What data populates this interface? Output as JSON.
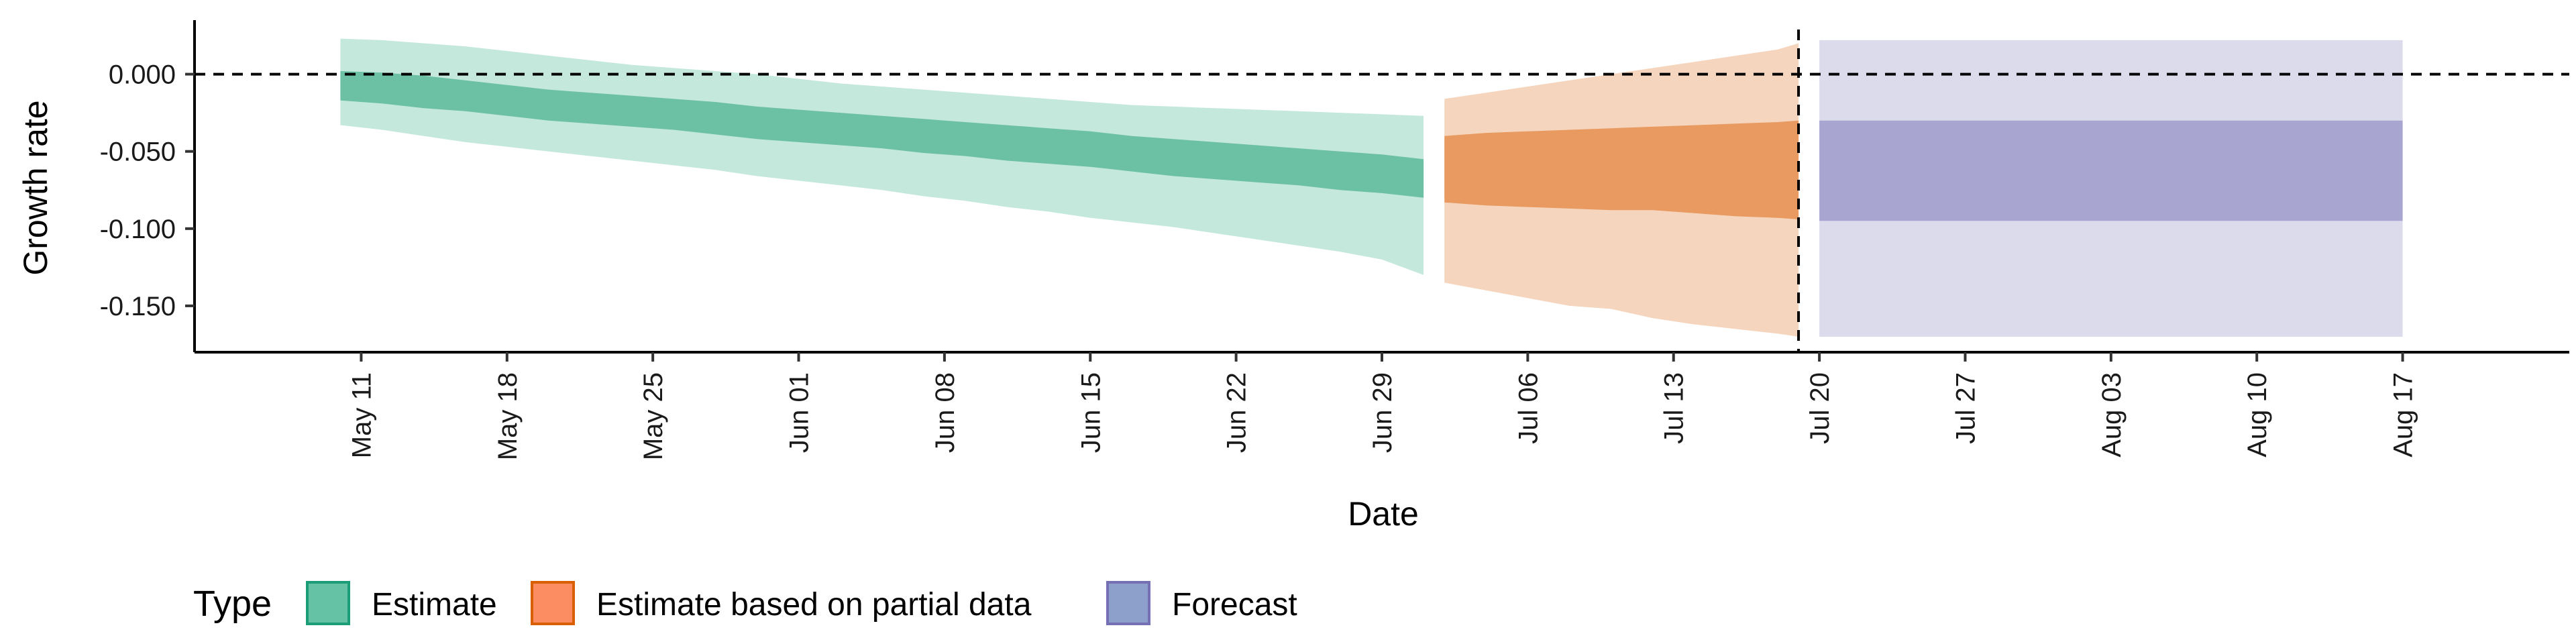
{
  "chart_data": {
    "type": "area",
    "title": "",
    "xlabel": "Date",
    "ylabel": "Growth rate",
    "x_axis": {
      "type": "date",
      "range": [
        "2020-05-03",
        "2020-08-25"
      ],
      "ticks": [
        "2020-05-11",
        "2020-05-18",
        "2020-05-25",
        "2020-06-01",
        "2020-06-08",
        "2020-06-15",
        "2020-06-22",
        "2020-06-29",
        "2020-07-06",
        "2020-07-13",
        "2020-07-20",
        "2020-07-27",
        "2020-08-03",
        "2020-08-10",
        "2020-08-17"
      ],
      "tick_labels": [
        "May 11",
        "May 18",
        "May 25",
        "Jun 01",
        "Jun 08",
        "Jun 15",
        "Jun 22",
        "Jun 29",
        "Jul 06",
        "Jul 13",
        "Jul 20",
        "Jul 27",
        "Aug 03",
        "Aug 10",
        "Aug 17"
      ]
    },
    "y_axis": {
      "range": [
        -0.18,
        0.035
      ],
      "ticks": [
        0.0,
        -0.05,
        -0.1,
        -0.15
      ],
      "tick_labels": [
        "0.000",
        "-0.050",
        "-0.100",
        "-0.150"
      ]
    },
    "grid": false,
    "reference_lines": [
      {
        "orientation": "horizontal",
        "value": 0.0,
        "style": "dashed"
      },
      {
        "orientation": "vertical",
        "value": "2020-07-19",
        "style": "dashed"
      }
    ],
    "legend": {
      "title": "Type",
      "position": "bottom-left",
      "entries": [
        {
          "label": "Estimate",
          "fill": "#66c2a5",
          "stroke": "#1b9e77"
        },
        {
          "label": "Estimate based on partial data",
          "fill": "#fc8d62",
          "stroke": "#d95f02"
        },
        {
          "label": "Forecast",
          "fill": "#8da0cb",
          "stroke": "#7570b3"
        }
      ]
    },
    "series": [
      {
        "name": "Estimate",
        "color_inner": "#6cc0a3",
        "color_outer": "#c4e8dc",
        "x": [
          "2020-05-10",
          "2020-05-12",
          "2020-05-14",
          "2020-05-16",
          "2020-05-18",
          "2020-05-20",
          "2020-05-22",
          "2020-05-24",
          "2020-05-26",
          "2020-05-28",
          "2020-05-30",
          "2020-06-01",
          "2020-06-03",
          "2020-06-05",
          "2020-06-07",
          "2020-06-09",
          "2020-06-11",
          "2020-06-13",
          "2020-06-15",
          "2020-06-17",
          "2020-06-19",
          "2020-06-21",
          "2020-06-23",
          "2020-06-25",
          "2020-06-27",
          "2020-06-29",
          "2020-07-01"
        ],
        "lower90": [
          -0.033,
          -0.036,
          -0.04,
          -0.044,
          -0.047,
          -0.05,
          -0.053,
          -0.056,
          -0.059,
          -0.062,
          -0.066,
          -0.069,
          -0.072,
          -0.075,
          -0.079,
          -0.082,
          -0.086,
          -0.089,
          -0.093,
          -0.096,
          -0.099,
          -0.103,
          -0.107,
          -0.111,
          -0.115,
          -0.12,
          -0.13
        ],
        "lower50": [
          -0.017,
          -0.019,
          -0.022,
          -0.024,
          -0.027,
          -0.03,
          -0.032,
          -0.034,
          -0.036,
          -0.039,
          -0.042,
          -0.044,
          -0.046,
          -0.048,
          -0.051,
          -0.053,
          -0.056,
          -0.058,
          -0.06,
          -0.063,
          -0.066,
          -0.068,
          -0.07,
          -0.072,
          -0.075,
          -0.077,
          -0.08
        ],
        "upper50": [
          0.002,
          0.001,
          -0.001,
          -0.004,
          -0.007,
          -0.01,
          -0.012,
          -0.014,
          -0.016,
          -0.018,
          -0.021,
          -0.023,
          -0.025,
          -0.027,
          -0.029,
          -0.031,
          -0.033,
          -0.035,
          -0.037,
          -0.04,
          -0.042,
          -0.044,
          -0.046,
          -0.048,
          -0.05,
          -0.052,
          -0.055
        ],
        "upper90": [
          0.023,
          0.022,
          0.02,
          0.018,
          0.015,
          0.012,
          0.009,
          0.006,
          0.004,
          0.002,
          0.0,
          -0.003,
          -0.006,
          -0.008,
          -0.01,
          -0.012,
          -0.014,
          -0.016,
          -0.018,
          -0.02,
          -0.021,
          -0.022,
          -0.023,
          -0.024,
          -0.025,
          -0.026,
          -0.027
        ]
      },
      {
        "name": "Estimate based on partial data",
        "color_inner": "#e89a60",
        "color_outer": "#f5d5bd",
        "x": [
          "2020-07-02",
          "2020-07-04",
          "2020-07-06",
          "2020-07-08",
          "2020-07-10",
          "2020-07-12",
          "2020-07-14",
          "2020-07-16",
          "2020-07-18",
          "2020-07-19"
        ],
        "lower90": [
          -0.135,
          -0.14,
          -0.145,
          -0.15,
          -0.152,
          -0.158,
          -0.162,
          -0.165,
          -0.168,
          -0.17
        ],
        "lower50": [
          -0.083,
          -0.085,
          -0.086,
          -0.087,
          -0.088,
          -0.088,
          -0.09,
          -0.092,
          -0.093,
          -0.094
        ],
        "upper50": [
          -0.04,
          -0.038,
          -0.037,
          -0.036,
          -0.035,
          -0.034,
          -0.033,
          -0.032,
          -0.031,
          -0.03
        ],
        "upper90": [
          -0.016,
          -0.012,
          -0.008,
          -0.004,
          0.0,
          0.004,
          0.008,
          0.012,
          0.016,
          0.02
        ]
      },
      {
        "name": "Forecast",
        "color_inner": "#a8a5d1",
        "color_outer": "#dcdbec",
        "x": [
          "2020-07-20",
          "2020-08-17"
        ],
        "lower90": [
          -0.17,
          -0.17
        ],
        "lower50": [
          -0.095,
          -0.095
        ],
        "upper50": [
          -0.03,
          -0.03
        ],
        "upper90": [
          0.022,
          0.022
        ]
      }
    ]
  }
}
